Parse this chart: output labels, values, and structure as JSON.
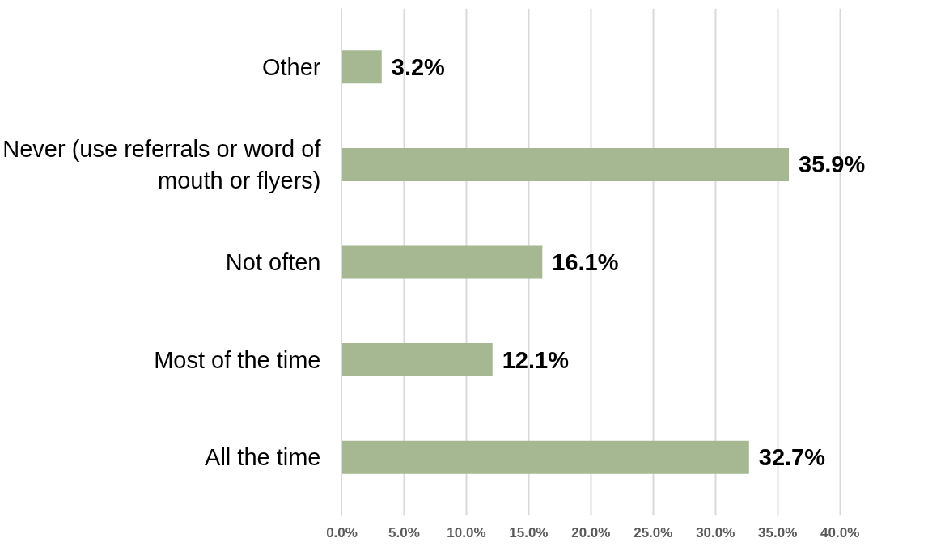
{
  "chart_data": {
    "type": "bar",
    "orientation": "horizontal",
    "categories": [
      "Other",
      "Never (use referrals or word of mouth or flyers)",
      "Not often",
      "Most of the time",
      "All the time"
    ],
    "values": [
      3.2,
      35.9,
      16.1,
      12.1,
      32.7
    ],
    "color": "#a6b892",
    "xlim": [
      0,
      40
    ],
    "xticks": [
      {
        "value": 0,
        "label": "0.0%"
      },
      {
        "value": 5,
        "label": "5.0%"
      },
      {
        "value": 10,
        "label": "10.0%"
      },
      {
        "value": 15,
        "label": "15.0%"
      },
      {
        "value": 20,
        "label": "20.0%"
      },
      {
        "value": 25,
        "label": "25.0%"
      },
      {
        "value": 30,
        "label": "30.0%"
      },
      {
        "value": 35,
        "label": "35.0%"
      },
      {
        "value": 40,
        "label": "40.0%"
      }
    ],
    "value_labels": [
      "3.2%",
      "35.9%",
      "16.1%",
      "12.1%",
      "32.7%"
    ],
    "grid": "x"
  }
}
